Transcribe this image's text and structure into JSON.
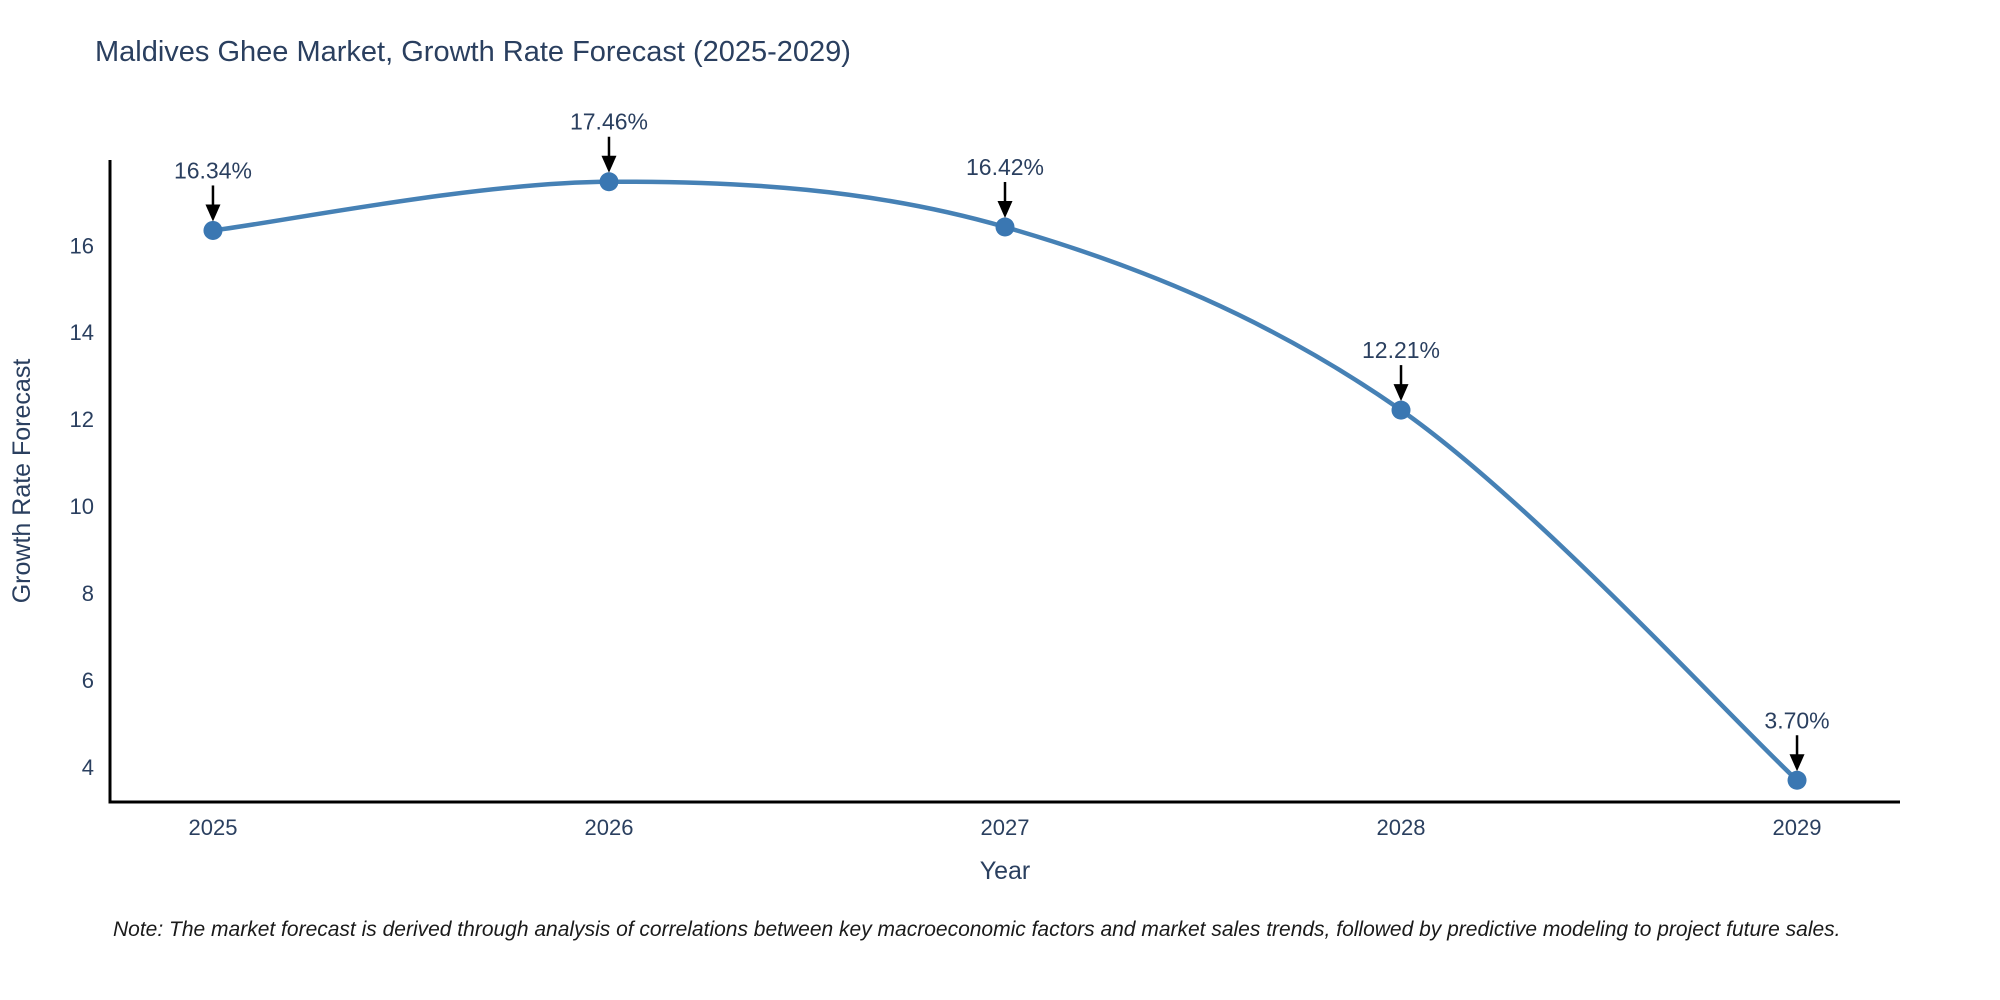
{
  "note": "Note: The market forecast is derived through analysis of correlations between key macroeconomic factors and market sales trends, followed by predictive modeling to project future sales.",
  "chart_data": {
    "type": "line",
    "title": "Maldives Ghee Market, Growth Rate Forecast (2025-2029)",
    "x": [
      2025,
      2026,
      2027,
      2028,
      2029
    ],
    "values": [
      16.34,
      17.46,
      16.42,
      12.21,
      3.7
    ],
    "point_labels": [
      "16.34%",
      "17.46%",
      "16.42%",
      "12.21%",
      "3.70%"
    ],
    "xlabel": "Year",
    "ylabel": "Growth Rate Forecast",
    "xticks": [
      2025,
      2026,
      2027,
      2028,
      2029
    ],
    "yticks": [
      4,
      6,
      8,
      10,
      12,
      14,
      16
    ],
    "xlim": [
      2024.74,
      2029.26
    ],
    "ylim": [
      3.2,
      17.96
    ],
    "grid": false,
    "legend": null,
    "colors": {
      "line": "#4681b5",
      "marker": "#3a77b2",
      "axis": "#000000",
      "tick_text": "#2a3f5f",
      "axis_title_text": "#2a3f5f",
      "annotation_text": "#2a3f5f",
      "annotation_arrow": "#000000",
      "title_text": "#2a3f5f",
      "note_text": "#1a1a1a",
      "background": "#ffffff"
    }
  }
}
